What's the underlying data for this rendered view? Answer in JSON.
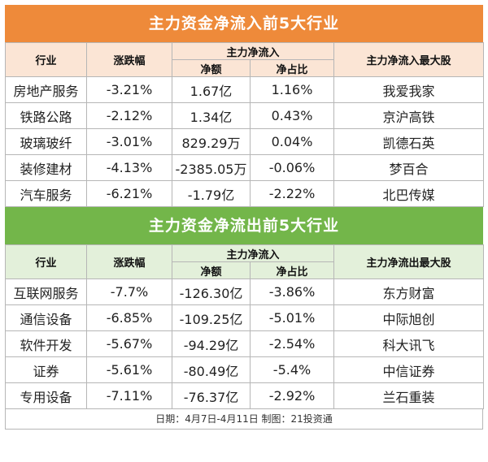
{
  "inflow": {
    "title": "主力资金净流入前5大行业",
    "headers": {
      "industry": "行业",
      "change": "涨跌幅",
      "group": "主力净流入",
      "net_amount": "净额",
      "net_ratio": "净占比",
      "top_stock": "主力净流入最大股"
    },
    "rows": [
      {
        "industry": "房地产服务",
        "change": "-3.21%",
        "net_amount": "1.67亿",
        "net_ratio": "1.16%",
        "top_stock": "我爱我家"
      },
      {
        "industry": "铁路公路",
        "change": "-2.12%",
        "net_amount": "1.34亿",
        "net_ratio": "0.43%",
        "top_stock": "京沪高铁"
      },
      {
        "industry": "玻璃玻纤",
        "change": "-3.01%",
        "net_amount": "829.29万",
        "net_ratio": "0.04%",
        "top_stock": "凯德石英"
      },
      {
        "industry": "装修建材",
        "change": "-4.13%",
        "net_amount": "-2385.05万",
        "net_ratio": "-0.06%",
        "top_stock": "梦百合"
      },
      {
        "industry": "汽车服务",
        "change": "-6.21%",
        "net_amount": "-1.79亿",
        "net_ratio": "-2.22%",
        "top_stock": "北巴传媒"
      }
    ]
  },
  "outflow": {
    "title": "主力资金净流出前5大行业",
    "headers": {
      "industry": "行业",
      "change": "涨跌幅",
      "group": "主力净流入",
      "net_amount": "净额",
      "net_ratio": "净占比",
      "top_stock": "主力净流出最大股"
    },
    "rows": [
      {
        "industry": "互联网服务",
        "change": "-7.7%",
        "net_amount": "-126.30亿",
        "net_ratio": "-3.86%",
        "top_stock": "东方财富"
      },
      {
        "industry": "通信设备",
        "change": "-6.85%",
        "net_amount": "-109.25亿",
        "net_ratio": "-5.01%",
        "top_stock": "中际旭创"
      },
      {
        "industry": "软件开发",
        "change": "-5.67%",
        "net_amount": "-94.29亿",
        "net_ratio": "-2.54%",
        "top_stock": "科大讯飞"
      },
      {
        "industry": "证券",
        "change": "-5.61%",
        "net_amount": "-80.49亿",
        "net_ratio": "-5.4%",
        "top_stock": "中信证券"
      },
      {
        "industry": "专用设备",
        "change": "-7.11%",
        "net_amount": "-76.37亿",
        "net_ratio": "-2.92%",
        "top_stock": "兰石重装"
      }
    ]
  },
  "footer": "日期：4月7日-4月11日 制图：21投资通",
  "colors": {
    "inflow_banner": "#ee8a3a",
    "outflow_banner": "#73b64a",
    "inflow_header": "#fbe5d5",
    "outflow_header": "#e3f0da"
  }
}
